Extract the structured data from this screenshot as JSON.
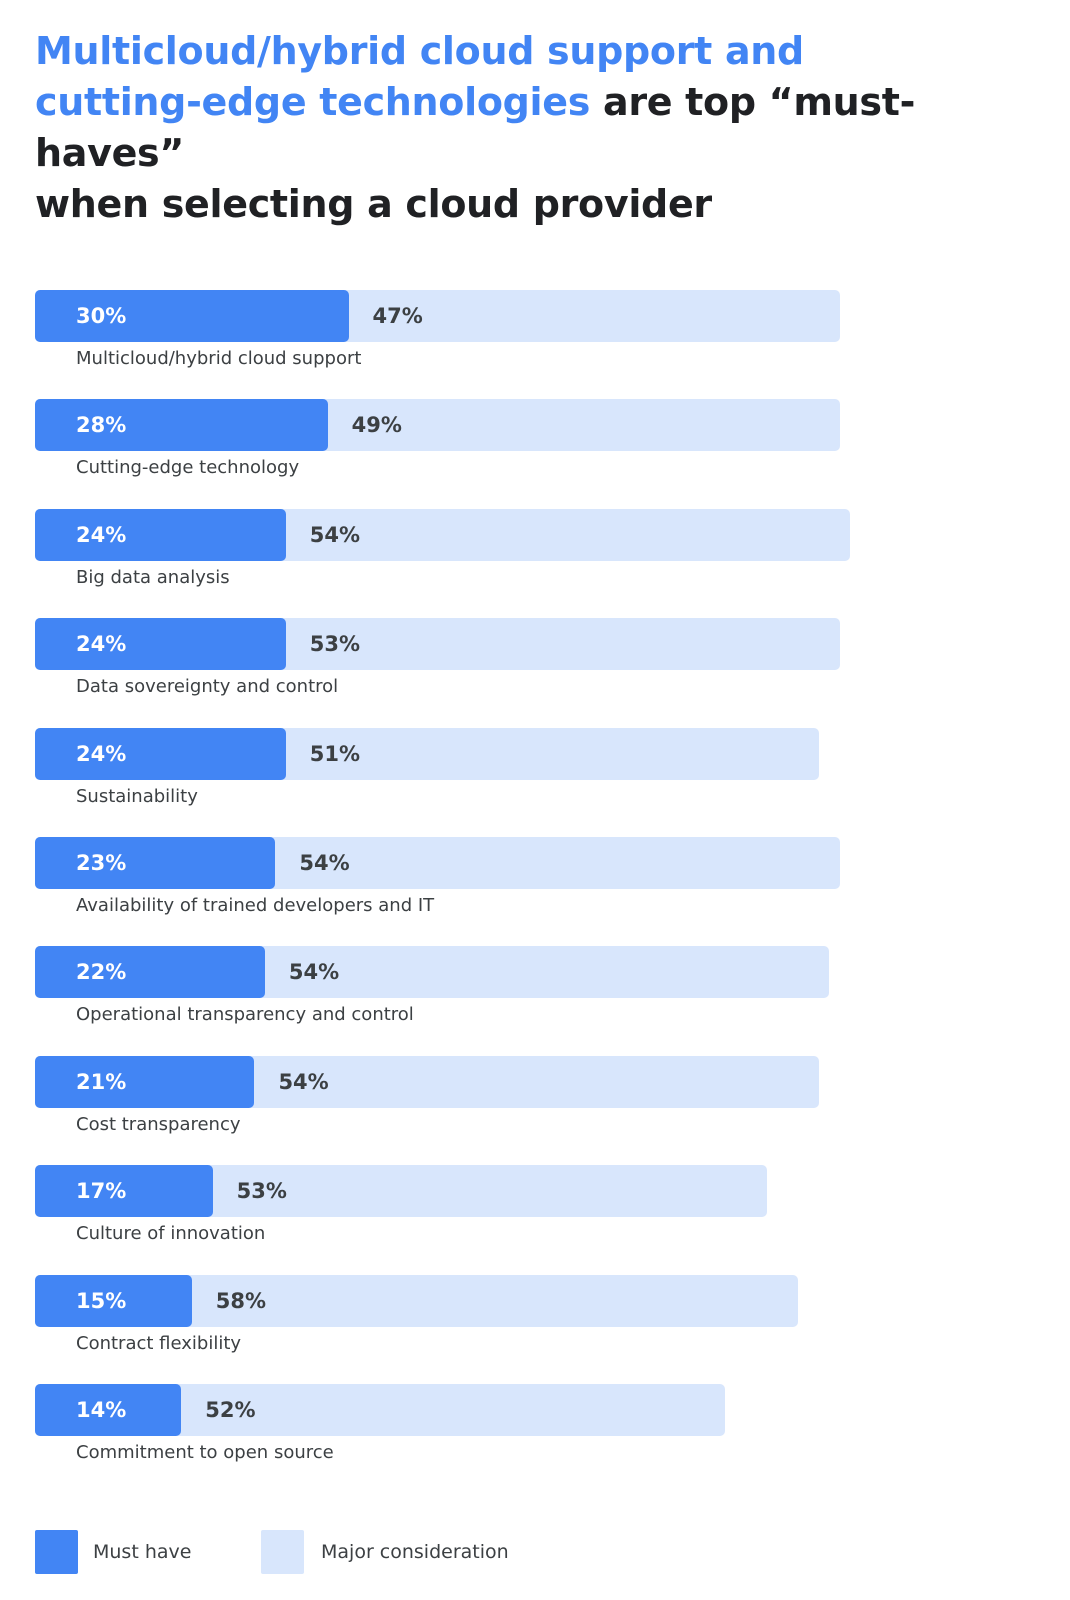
{
  "title": {
    "highlight_1": "Multicloud/hybrid cloud support and",
    "highlight_2": "cutting-edge technologies",
    "rest_1": " are top “must-haves”",
    "rest_2": "when selecting a cloud provider"
  },
  "colors": {
    "must_have": "#4285f4",
    "major_consideration": "#d8e6fc",
    "title_highlight": "#4285f4",
    "title_text": "#202124"
  },
  "chart_data": {
    "type": "bar",
    "orientation": "horizontal",
    "stacked": true,
    "categories": [
      "Multicloud/hybrid cloud support",
      "Cutting-edge technology",
      "Big data analysis",
      "Data sovereignty and control",
      "Sustainability",
      "Availability of trained developers and IT",
      "Operational transparency and control",
      "Cost transparency",
      "Culture of innovation",
      "Contract flexibility",
      "Commitment to open source"
    ],
    "series": [
      {
        "name": "Must have",
        "values": [
          30,
          28,
          24,
          24,
          24,
          23,
          22,
          21,
          17,
          15,
          14
        ],
        "labels": [
          "30%",
          "28%",
          "24%",
          "24%",
          "24%",
          "23%",
          "22%",
          "21%",
          "17%",
          "15%",
          "14%"
        ]
      },
      {
        "name": "Major consideration",
        "values": [
          47,
          49,
          54,
          53,
          51,
          54,
          54,
          54,
          53,
          58,
          52
        ],
        "labels": [
          "47%",
          "49%",
          "54%",
          "53%",
          "51%",
          "54%",
          "54%",
          "54%",
          "53%",
          "58%",
          "52%"
        ]
      }
    ],
    "xlim": [
      0,
      100
    ],
    "grid": false,
    "legend_position": "bottom-left"
  }
}
